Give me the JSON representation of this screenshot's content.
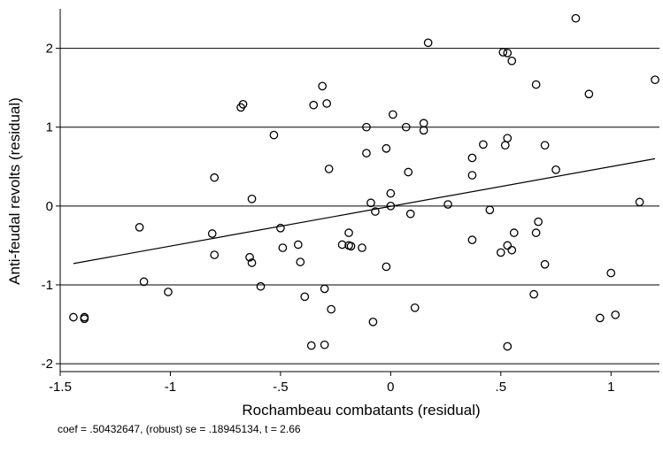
{
  "chart_data": {
    "type": "scatter",
    "title": "",
    "xlabel": "Rochambeau combatants (residual)",
    "ylabel": "Anti-feudal revolts (residual)",
    "xlim": [
      -1.5,
      1.22
    ],
    "ylim": [
      -2.1,
      2.5
    ],
    "xticks": [
      -1.5,
      -1,
      -0.5,
      0,
      0.5,
      1
    ],
    "xtick_labels": [
      "-1.5",
      "-1",
      "-.5",
      "0",
      ".5",
      "1"
    ],
    "yticks": [
      -2,
      -1,
      0,
      1,
      2
    ],
    "ytick_labels": [
      "-2",
      "-1",
      "0",
      "1",
      "2"
    ],
    "grid": "horizontal",
    "legend": "none",
    "colors": {
      "marker": "#000000",
      "line": "#000000",
      "grid": "#000000"
    },
    "fit_line": {
      "x": [
        -1.44,
        1.2
      ],
      "y": [
        -0.73,
        0.6
      ]
    },
    "note": "coef = .50432647, (robust) se = .18945134, t = 2.66",
    "points": [
      {
        "x": 0.84,
        "y": 2.38
      },
      {
        "x": 0.17,
        "y": 2.07
      },
      {
        "x": 0.51,
        "y": 1.95
      },
      {
        "x": 0.53,
        "y": 1.94
      },
      {
        "x": 0.55,
        "y": 1.84
      },
      {
        "x": 1.2,
        "y": 1.6
      },
      {
        "x": 0.66,
        "y": 1.54
      },
      {
        "x": -0.31,
        "y": 1.52
      },
      {
        "x": 0.9,
        "y": 1.42
      },
      {
        "x": -0.67,
        "y": 1.29
      },
      {
        "x": -0.68,
        "y": 1.25
      },
      {
        "x": -0.35,
        "y": 1.28
      },
      {
        "x": -0.29,
        "y": 1.3
      },
      {
        "x": 0.01,
        "y": 1.16
      },
      {
        "x": 0.15,
        "y": 1.05
      },
      {
        "x": -0.11,
        "y": 1.0
      },
      {
        "x": 0.07,
        "y": 1.0
      },
      {
        "x": 0.15,
        "y": 0.96
      },
      {
        "x": -0.53,
        "y": 0.9
      },
      {
        "x": 0.53,
        "y": 0.86
      },
      {
        "x": 0.42,
        "y": 0.78
      },
      {
        "x": 0.52,
        "y": 0.77
      },
      {
        "x": 0.7,
        "y": 0.77
      },
      {
        "x": -0.02,
        "y": 0.73
      },
      {
        "x": -0.11,
        "y": 0.67
      },
      {
        "x": 0.37,
        "y": 0.61
      },
      {
        "x": -0.28,
        "y": 0.47
      },
      {
        "x": 0.75,
        "y": 0.46
      },
      {
        "x": 0.08,
        "y": 0.43
      },
      {
        "x": 0.37,
        "y": 0.39
      },
      {
        "x": -0.8,
        "y": 0.36
      },
      {
        "x": 0.0,
        "y": 0.16
      },
      {
        "x": -0.63,
        "y": 0.09
      },
      {
        "x": 1.13,
        "y": 0.05
      },
      {
        "x": -0.09,
        "y": 0.04
      },
      {
        "x": 0.26,
        "y": 0.02
      },
      {
        "x": 0.0,
        "y": 0.0
      },
      {
        "x": -0.07,
        "y": -0.07
      },
      {
        "x": 0.45,
        "y": -0.05
      },
      {
        "x": 0.09,
        "y": -0.1
      },
      {
        "x": 0.67,
        "y": -0.2
      },
      {
        "x": -1.14,
        "y": -0.27
      },
      {
        "x": -0.5,
        "y": -0.28
      },
      {
        "x": -0.81,
        "y": -0.35
      },
      {
        "x": -0.19,
        "y": -0.34
      },
      {
        "x": 0.56,
        "y": -0.34
      },
      {
        "x": 0.66,
        "y": -0.34
      },
      {
        "x": 0.37,
        "y": -0.43
      },
      {
        "x": -0.42,
        "y": -0.49
      },
      {
        "x": -0.22,
        "y": -0.49
      },
      {
        "x": -0.19,
        "y": -0.5
      },
      {
        "x": -0.18,
        "y": -0.51
      },
      {
        "x": -0.13,
        "y": -0.53
      },
      {
        "x": 0.53,
        "y": -0.5
      },
      {
        "x": -0.49,
        "y": -0.53
      },
      {
        "x": 0.55,
        "y": -0.56
      },
      {
        "x": 0.5,
        "y": -0.59
      },
      {
        "x": -0.8,
        "y": -0.62
      },
      {
        "x": -0.64,
        "y": -0.65
      },
      {
        "x": -0.63,
        "y": -0.72
      },
      {
        "x": -0.41,
        "y": -0.71
      },
      {
        "x": 0.7,
        "y": -0.74
      },
      {
        "x": -0.02,
        "y": -0.77
      },
      {
        "x": 1.0,
        "y": -0.85
      },
      {
        "x": -1.12,
        "y": -0.96
      },
      {
        "x": -0.59,
        "y": -1.02
      },
      {
        "x": -0.3,
        "y": -1.05
      },
      {
        "x": -1.01,
        "y": -1.09
      },
      {
        "x": 0.65,
        "y": -1.12
      },
      {
        "x": -0.39,
        "y": -1.15
      },
      {
        "x": 0.11,
        "y": -1.29
      },
      {
        "x": -0.27,
        "y": -1.31
      },
      {
        "x": 1.02,
        "y": -1.38
      },
      {
        "x": -1.44,
        "y": -1.41
      },
      {
        "x": -1.39,
        "y": -1.41
      },
      {
        "x": -1.39,
        "y": -1.43
      },
      {
        "x": 0.95,
        "y": -1.42
      },
      {
        "x": -0.08,
        "y": -1.47
      },
      {
        "x": -0.36,
        "y": -1.77
      },
      {
        "x": -0.3,
        "y": -1.76
      },
      {
        "x": 0.53,
        "y": -1.78
      }
    ]
  }
}
